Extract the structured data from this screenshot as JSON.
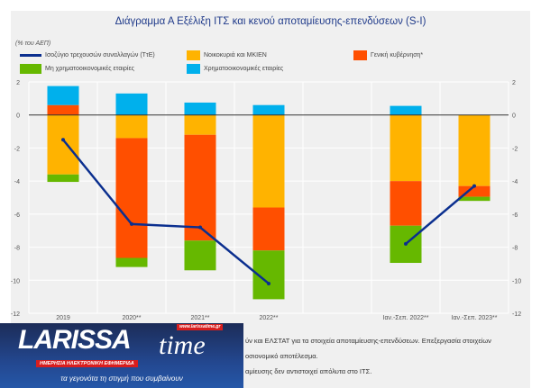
{
  "chart_data": {
    "type": "bar",
    "stacked": true,
    "title": "Διάγραμμα Α Εξέλιξη ΙΤΣ και κενού αποταμίευσης-επενδύσεων (S-I)",
    "ylabel": "(% του ΑΕΠ)",
    "ylim": [
      -12,
      2
    ],
    "yticks": [
      2,
      0,
      -2,
      -4,
      -6,
      -8,
      -10,
      -12
    ],
    "categories": [
      "2019",
      "2020**",
      "2021**",
      "2022**",
      "",
      "Ιαν.-Σεπ. 2022**",
      "Ιαν.-Σεπ. 2023**"
    ],
    "series": [
      {
        "name": "Νοικοκυριά και ΜΚΙΕΝ",
        "color": "#ffb300",
        "values": [
          -3.6,
          -1.4,
          -1.2,
          -5.6,
          null,
          -4.0,
          -4.3
        ]
      },
      {
        "name": "Γενική κυβέρνηση*",
        "color": "#ff4f00",
        "values": [
          0.6,
          -7.25,
          -6.4,
          -2.6,
          null,
          -2.7,
          -0.65
        ]
      },
      {
        "name": "Μη χρηματοοικονομικές εταιρίες",
        "color": "#66b800",
        "values": [
          -0.45,
          -0.55,
          -1.8,
          -2.95,
          null,
          -2.25,
          -0.25
        ]
      },
      {
        "name": "Χρηματοοικονομικές εταιρίες",
        "color": "#00b0ec",
        "values": [
          1.15,
          1.3,
          0.75,
          0.6,
          null,
          0.55,
          0
        ]
      }
    ],
    "line": {
      "name": "Ισοζύγιο τρεχουσών συναλλαγών (ΤτΕ)",
      "color": "#0b2f8f",
      "values": [
        -1.5,
        -6.6,
        -6.8,
        -10.2,
        null,
        -7.8,
        -4.3
      ]
    },
    "legend": "top",
    "grid": true
  },
  "notes": [
    "ύν και ΕΛΣΤΑΤ για τα στοιχεία αποταμίευσης-επενδύσεων. Επεξεργασία στοιχείων",
    "οσιονομικό αποτέλεσμα.",
    "αμίευσης δεν αντιστοιχεί απόλυτα στο ΙΤΣ."
  ],
  "logo": {
    "name": "LARISSA",
    "name2": "time",
    "url": "www.larissatime.gr",
    "tagline": "ΗΜΕΡΗΣΙΑ ΗΛΕΚΤΡΟΝΙΚΗ ΕΦΗΜΕΡΙΔΑ",
    "slogan": "τα γεγονότα τη στιγμή που συμβαίνουν"
  }
}
